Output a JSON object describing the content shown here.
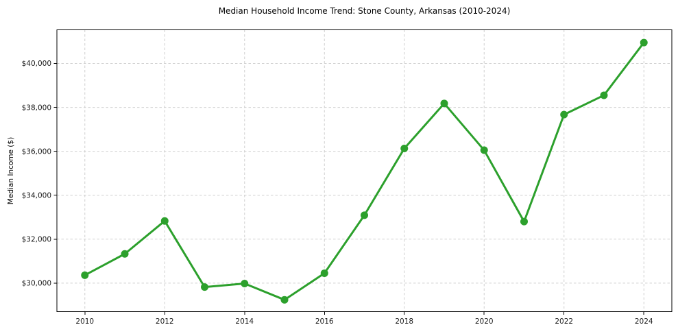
{
  "chart_data": {
    "type": "line",
    "title": "Median Household Income Trend: Stone County, Arkansas (2010-2024)",
    "xlabel": "",
    "ylabel": "Median Income ($)",
    "x": [
      2010,
      2011,
      2012,
      2013,
      2014,
      2015,
      2016,
      2017,
      2018,
      2019,
      2020,
      2021,
      2022,
      2023,
      2024
    ],
    "values": [
      30360,
      31330,
      32830,
      29820,
      29980,
      29240,
      30450,
      33090,
      36130,
      38180,
      36050,
      32800,
      37670,
      38550,
      40950
    ],
    "line_color": "#2ca02c",
    "marker": "circle",
    "marker_radius": 5.5,
    "line_width": 3,
    "grid": true,
    "grid_style": "dashed",
    "grid_color": "#cfcfcf",
    "legend_position": "none",
    "xlim": [
      2009.3,
      2024.7
    ],
    "ylim": [
      28700,
      41530
    ],
    "yticks": {
      "values": [
        30000,
        32000,
        34000,
        36000,
        38000,
        40000
      ],
      "labels": [
        "$30,000",
        "$32,000",
        "$34,000",
        "$36,000",
        "$38,000",
        "$40,000"
      ]
    },
    "xticks": {
      "values": [
        2010,
        2012,
        2014,
        2016,
        2018,
        2020,
        2022,
        2024
      ],
      "labels": [
        "2010",
        "2012",
        "2014",
        "2016",
        "2018",
        "2020",
        "2022",
        "2024"
      ]
    }
  }
}
